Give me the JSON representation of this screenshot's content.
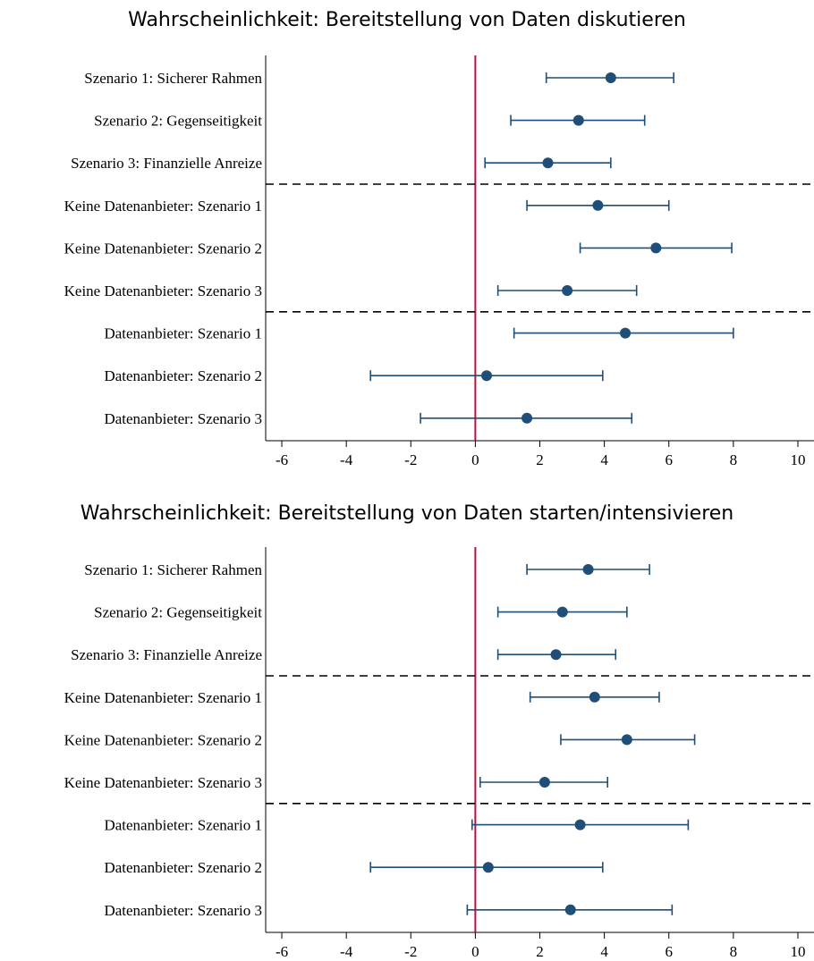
{
  "chart_data": [
    {
      "type": "scatter",
      "title": "Wahrscheinlichkeit: Bereitstellung von Daten diskutieren",
      "categories": [
        "Szenario 1: Sicherer Rahmen",
        "Szenario 2: Gegenseitigkeit",
        "Szenario 3: Finanzielle Anreize",
        "Keine Datenanbieter: Szenario 1",
        "Keine Datenanbieter: Szenario 2",
        "Keine Datenanbieter: Szenario 3",
        "Datenanbieter: Szenario 1",
        "Datenanbieter: Szenario 2",
        "Datenanbieter: Szenario 3"
      ],
      "estimate": [
        4.2,
        3.2,
        2.25,
        3.8,
        5.6,
        2.85,
        4.65,
        0.35,
        1.6
      ],
      "ci_low": [
        2.2,
        1.1,
        0.3,
        1.6,
        3.25,
        0.7,
        1.2,
        -3.25,
        -1.7
      ],
      "ci_high": [
        6.15,
        5.25,
        4.2,
        6.0,
        7.95,
        5.0,
        8.0,
        3.95,
        4.85
      ],
      "xlim": [
        -6.5,
        10.5
      ],
      "xticks": [
        "-6",
        "-4",
        "-2",
        "0",
        "2",
        "4",
        "6",
        "8",
        "10"
      ],
      "reference_line": 0,
      "group_separators_after": [
        3,
        6
      ],
      "colors": {
        "point": "#1f4e79",
        "reference": "#b5123f",
        "separator": "#000000"
      }
    },
    {
      "type": "scatter",
      "title": "Wahrscheinlichkeit: Bereitstellung von Daten starten/intensivieren",
      "categories": [
        "Szenario 1: Sicherer Rahmen",
        "Szenario 2: Gegenseitigkeit",
        "Szenario 3: Finanzielle Anreize",
        "Keine Datenanbieter: Szenario 1",
        "Keine Datenanbieter: Szenario 2",
        "Keine Datenanbieter: Szenario 3",
        "Datenanbieter: Szenario 1",
        "Datenanbieter: Szenario 2",
        "Datenanbieter: Szenario 3"
      ],
      "estimate": [
        3.5,
        2.7,
        2.5,
        3.7,
        4.7,
        2.15,
        3.25,
        0.4,
        2.95
      ],
      "ci_low": [
        1.6,
        0.7,
        0.7,
        1.7,
        2.65,
        0.15,
        -0.1,
        -3.25,
        -0.25
      ],
      "ci_high": [
        5.4,
        4.7,
        4.35,
        5.7,
        6.8,
        4.1,
        6.6,
        3.95,
        6.1
      ],
      "xlim": [
        -6.5,
        10.5
      ],
      "xticks": [
        "-6",
        "-4",
        "-2",
        "0",
        "2",
        "4",
        "6",
        "8",
        "10"
      ],
      "reference_line": 0,
      "group_separators_after": [
        3,
        6
      ],
      "colors": {
        "point": "#1f4e79",
        "reference": "#b5123f",
        "separator": "#000000"
      }
    }
  ]
}
